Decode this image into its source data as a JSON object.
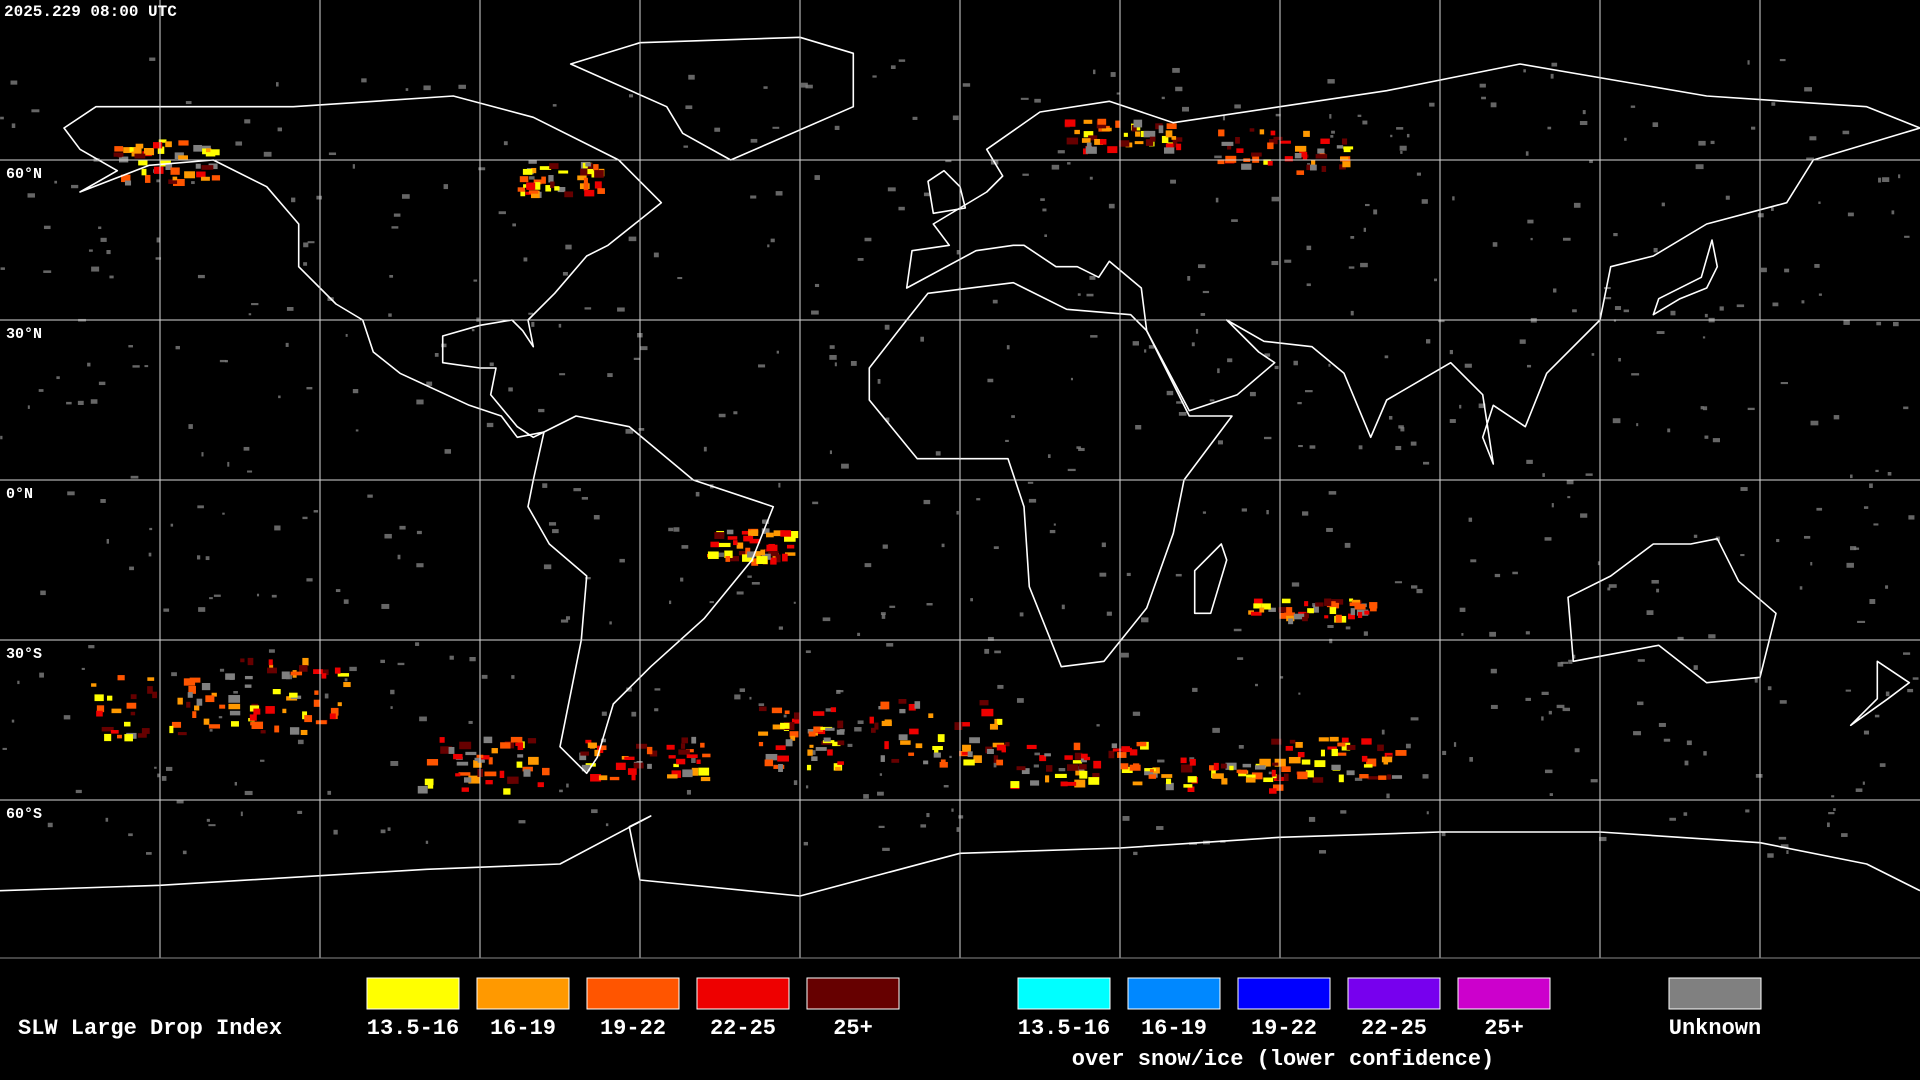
{
  "timestamp": "2025.229 08:00 UTC",
  "latitude_labels": [
    "60°N",
    "30°N",
    "0°N",
    "30°S",
    "60°S"
  ],
  "legend": {
    "title": "SLW Large Drop Index",
    "items": [
      {
        "label": "13.5-16",
        "color": "#ffff00"
      },
      {
        "label": "16-19",
        "color": "#ff9900"
      },
      {
        "label": "19-22",
        "color": "#ff5500"
      },
      {
        "label": "22-25",
        "color": "#ee0000"
      },
      {
        "label": "25+",
        "color": "#660000"
      }
    ],
    "snow_ice_items": [
      {
        "label": "13.5-16",
        "color": "#00ffff"
      },
      {
        "label": "16-19",
        "color": "#0088ff"
      },
      {
        "label": "19-22",
        "color": "#0000ff"
      },
      {
        "label": "22-25",
        "color": "#7700ee"
      },
      {
        "label": "25+",
        "color": "#cc00cc"
      }
    ],
    "snow_ice_note": "over snow/ice (lower confidence)",
    "unknown": {
      "label": "Unknown",
      "color": "#808080"
    }
  }
}
